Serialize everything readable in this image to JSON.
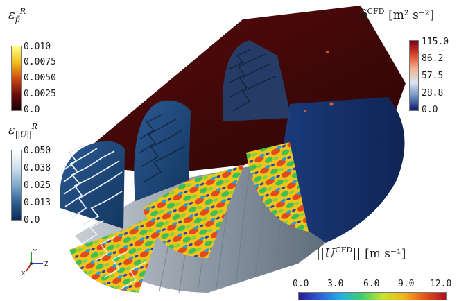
{
  "legend_error_p": {
    "title": "ε",
    "title_sub": "p̃",
    "title_sup": "R",
    "ticks": [
      "0.010",
      "0.0075",
      "0.0050",
      "0.0025",
      "0.0"
    ]
  },
  "legend_error_u": {
    "title": "ε",
    "title_sub": "||U||",
    "title_sup": "R",
    "ticks": [
      "0.050",
      "0.038",
      "0.025",
      "0.013",
      "0.0"
    ]
  },
  "legend_pressure": {
    "title": "p̃",
    "title_sup": "CFD",
    "unit": "[m² s⁻²]",
    "ticks": [
      "115.0",
      "86.2",
      "57.5",
      "28.8",
      "0.0"
    ]
  },
  "legend_velocity": {
    "title": "||U",
    "title_sup": "CFD",
    "title_end": "||",
    "unit": "[m s⁻¹]",
    "ticks": [
      "0.0",
      "3.0",
      "6.0",
      "9.0",
      "12.0"
    ]
  },
  "axes_triad": {
    "y_label": "Y",
    "z_label": "Z",
    "x_label": "X"
  }
}
